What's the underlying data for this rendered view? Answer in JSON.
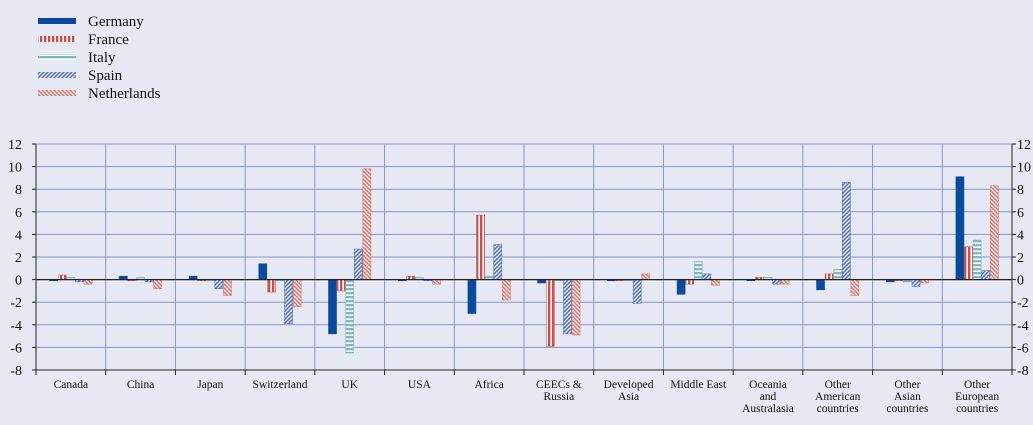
{
  "chart_data": {
    "type": "bar",
    "categories": [
      [
        "Canada"
      ],
      [
        "China"
      ],
      [
        "Japan"
      ],
      [
        "Switzerland"
      ],
      [
        "UK"
      ],
      [
        "USA"
      ],
      [
        "Africa"
      ],
      [
        "CEECs &",
        "Russia"
      ],
      [
        "Developed",
        "Asia"
      ],
      [
        "Middle East"
      ],
      [
        "Oceania",
        "and",
        "Australasia"
      ],
      [
        "Other",
        "American",
        "countries"
      ],
      [
        "Other",
        "Asian",
        "countries"
      ],
      [
        "Other",
        "European",
        "countries"
      ]
    ],
    "series": [
      {
        "name": "Germany",
        "color": "#0b4a9b",
        "pattern": "solid",
        "values": [
          -0.1,
          0.3,
          0.3,
          1.4,
          -4.8,
          -0.1,
          -3.0,
          -0.3,
          -0.1,
          -1.3,
          -0.1,
          -0.9,
          -0.2,
          9.1
        ]
      },
      {
        "name": "France",
        "color": "#c9504b",
        "pattern": "vertical",
        "values": [
          0.4,
          -0.1,
          -0.1,
          -1.1,
          -1.0,
          0.3,
          5.7,
          -5.9,
          -0.1,
          -0.4,
          0.2,
          0.5,
          -0.1,
          2.9
        ]
      },
      {
        "name": "Italy",
        "color": "#7fb8be",
        "pattern": "horizontal",
        "values": [
          0.2,
          0.2,
          -0.1,
          -0.1,
          -6.5,
          0.2,
          0.3,
          -0.1,
          -0.1,
          1.6,
          0.2,
          0.9,
          -0.2,
          3.5
        ]
      },
      {
        "name": "Spain",
        "color": "#4f6fc0",
        "pattern": "diagonal-up",
        "values": [
          -0.2,
          -0.2,
          -0.8,
          -3.9,
          2.7,
          -0.1,
          3.1,
          -4.8,
          -2.1,
          0.5,
          -0.4,
          8.6,
          -0.6,
          0.8
        ]
      },
      {
        "name": "Netherlands",
        "color": "#d9736d",
        "pattern": "diagonal-down",
        "values": [
          -0.4,
          -0.8,
          -1.4,
          -2.4,
          9.8,
          -0.4,
          -1.8,
          -4.9,
          0.5,
          -0.5,
          -0.4,
          -1.4,
          -0.3,
          8.3
        ]
      }
    ],
    "y_ticks": [
      "12",
      "10",
      "8",
      "6",
      "4",
      "2",
      "0",
      "-2",
      "-4",
      "-6",
      "-8"
    ],
    "right_ticks": [
      "12",
      "10",
      "8",
      "6",
      "4",
      "2",
      "0",
      "-2",
      "-4",
      "-6",
      "-8"
    ],
    "ylim": [
      -8,
      12
    ],
    "grid": true,
    "legend_position": "top-left"
  }
}
